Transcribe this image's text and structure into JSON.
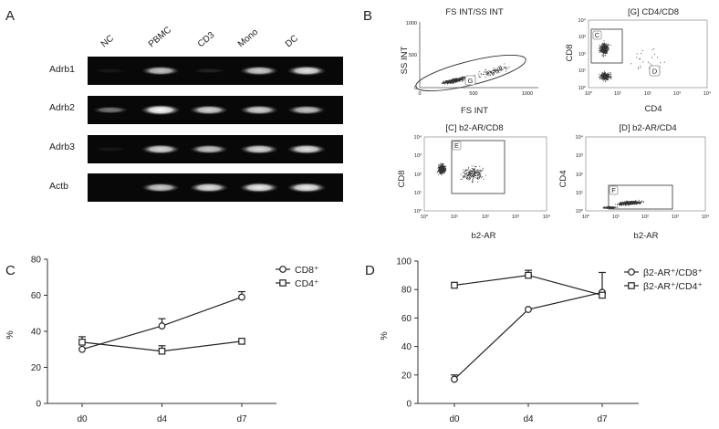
{
  "panel_labels": [
    "A",
    "B",
    "C",
    "D"
  ],
  "gel": {
    "lanes": [
      "NC",
      "PBMC",
      "CD3",
      "Mono",
      "DC"
    ],
    "genes": [
      {
        "name": "Adrb1",
        "bands": [
          0.02,
          0.72,
          0.06,
          0.76,
          0.85
        ]
      },
      {
        "name": "Adrb2",
        "bands": [
          0.4,
          0.95,
          0.78,
          0.78,
          0.72
        ]
      },
      {
        "name": "Adrb3",
        "bands": [
          0.02,
          0.8,
          0.72,
          0.8,
          0.84
        ]
      },
      {
        "name": "Actb",
        "bands": [
          0.0,
          0.75,
          0.83,
          0.88,
          0.88
        ]
      }
    ]
  },
  "flow": {
    "fs_ss": {
      "title": "FS INT/SS INT",
      "xlabel": "FS INT",
      "ylabel": "SS INT",
      "x_ticks": [
        "0",
        "500",
        "1000"
      ],
      "y_ticks": [
        "0",
        "500",
        "1000"
      ],
      "gate": "G"
    },
    "cd4_cd8": {
      "title": "[G] CD4/CD8",
      "xlabel": "CD4",
      "ylabel": "CD8",
      "x_ticks": [
        "10⁰",
        "10¹",
        "10²",
        "10³",
        "10⁴"
      ],
      "y_ticks": [
        "10⁰",
        "10¹",
        "10²",
        "10³",
        "10⁴"
      ],
      "gates": [
        "C",
        "D"
      ]
    },
    "b2_cd8": {
      "title": "[C] b2-AR/CD8",
      "xlabel": "b2-AR",
      "ylabel": "CD8",
      "x_ticks": [
        "10⁰",
        "10¹",
        "10²",
        "10³",
        "10⁴"
      ],
      "y_ticks": [
        "10⁰",
        "10¹",
        "10²",
        "10³",
        "10⁴"
      ],
      "gate": "E"
    },
    "b2_cd4": {
      "title": "[D] b2-AR/CD4",
      "xlabel": "b2-AR",
      "ylabel": "CD4",
      "x_ticks": [
        "10⁰",
        "10¹",
        "10²",
        "10³",
        "10⁴"
      ],
      "y_ticks": [
        "10⁰",
        "10¹",
        "10²",
        "10³",
        "10⁴"
      ],
      "gate": "F"
    }
  },
  "chart_data": [
    {
      "type": "line",
      "panel": "C",
      "categories": [
        "d0",
        "d4",
        "d7"
      ],
      "ylabel": "%",
      "ylim": [
        0,
        80
      ],
      "y_ticks": [
        0,
        20,
        40,
        60,
        80
      ],
      "legend_position": "top-right",
      "series": [
        {
          "name": "CD8⁺",
          "marker": "circle",
          "values": [
            30,
            43,
            59
          ],
          "errors": [
            0,
            4,
            3
          ]
        },
        {
          "name": "CD4⁺",
          "marker": "square",
          "values": [
            34,
            29,
            34.5
          ],
          "errors": [
            3,
            3,
            0
          ]
        }
      ]
    },
    {
      "type": "line",
      "panel": "D",
      "categories": [
        "d0",
        "d4",
        "d7"
      ],
      "ylabel": "%",
      "ylim": [
        0,
        100
      ],
      "y_ticks": [
        0,
        20,
        40,
        60,
        80,
        100
      ],
      "legend_position": "top-right",
      "series": [
        {
          "name": "β2-AR⁺/CD8⁺",
          "marker": "circle",
          "values": [
            17,
            66,
            78
          ],
          "errors": [
            3,
            0,
            14
          ]
        },
        {
          "name": "β2-AR⁺/CD4⁺",
          "marker": "square",
          "values": [
            83,
            90,
            76
          ],
          "errors": [
            0,
            3.5,
            0
          ]
        }
      ]
    }
  ]
}
